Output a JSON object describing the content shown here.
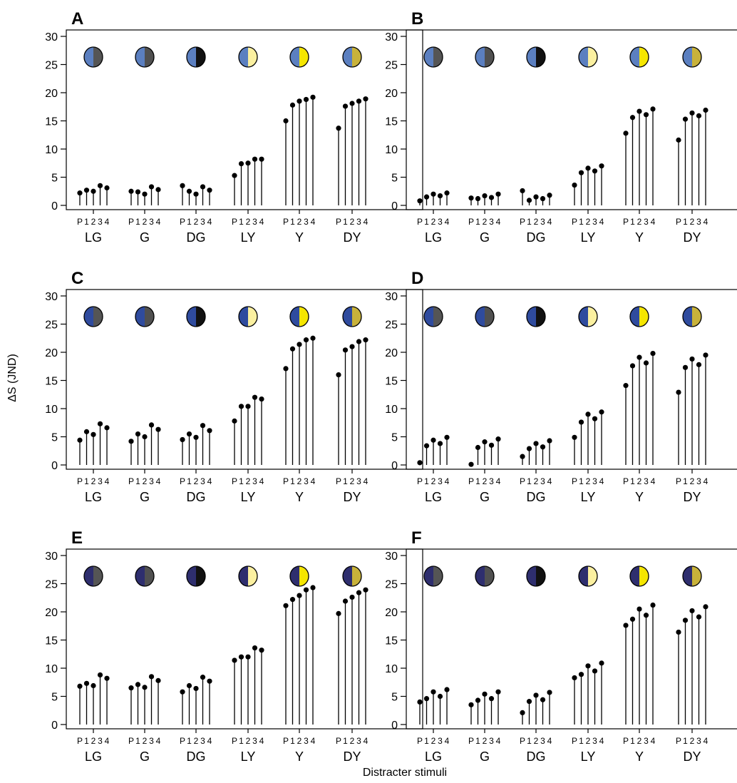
{
  "ylabel": "ΔS (JND)",
  "xlabel": "Distracter stimuli",
  "sub_labels": [
    "P",
    "1",
    "2",
    "3",
    "4"
  ],
  "colors": {
    "LG": "#555555",
    "G": "#505050",
    "DG": "#111111",
    "LY": "#fbf0a0",
    "Y": "#f5e600",
    "DY": "#c8b23a"
  },
  "chart_data": [
    {
      "panel": "A",
      "type": "lollipop",
      "ylim": [
        0,
        30
      ],
      "yticks": [
        0,
        5,
        10,
        15,
        20,
        25,
        30
      ],
      "target_color": "#5b7fc0",
      "categories": [
        "LG",
        "G",
        "DG",
        "LY",
        "Y",
        "DY"
      ],
      "values": [
        [
          2.2,
          2.7,
          2.5,
          3.5,
          3.1
        ],
        [
          2.5,
          2.4,
          2.0,
          3.3,
          2.8
        ],
        [
          3.5,
          2.5,
          2.0,
          3.3,
          2.7
        ],
        [
          5.3,
          7.4,
          7.5,
          8.2,
          8.2
        ],
        [
          15.0,
          17.8,
          18.5,
          18.8,
          19.2
        ],
        [
          13.7,
          17.6,
          18.1,
          18.5,
          18.9
        ]
      ]
    },
    {
      "panel": "B",
      "type": "lollipop",
      "ylim": [
        0,
        30
      ],
      "yticks": [
        0,
        5,
        10,
        15,
        20,
        25,
        30
      ],
      "target_color": "#5b7fc0",
      "categories": [
        "LG",
        "G",
        "DG",
        "LY",
        "Y",
        "DY"
      ],
      "values": [
        [
          0.8,
          1.5,
          2.0,
          1.7,
          2.2
        ],
        [
          1.3,
          1.2,
          1.7,
          1.4,
          2.0
        ],
        [
          2.6,
          0.9,
          1.5,
          1.2,
          1.8
        ],
        [
          3.6,
          5.8,
          6.6,
          6.1,
          7.0
        ],
        [
          12.8,
          15.6,
          16.7,
          16.1,
          17.1
        ],
        [
          11.6,
          15.3,
          16.4,
          15.9,
          16.9
        ]
      ]
    },
    {
      "panel": "C",
      "type": "lollipop",
      "ylim": [
        0,
        30
      ],
      "yticks": [
        0,
        5,
        10,
        15,
        20,
        25,
        30
      ],
      "target_color": "#2f4b9e",
      "categories": [
        "LG",
        "G",
        "DG",
        "LY",
        "Y",
        "DY"
      ],
      "values": [
        [
          4.4,
          5.9,
          5.4,
          7.3,
          6.6
        ],
        [
          4.2,
          5.5,
          5.0,
          7.1,
          6.3
        ],
        [
          4.5,
          5.5,
          4.9,
          7.0,
          6.1
        ],
        [
          7.8,
          10.4,
          10.4,
          12.0,
          11.7
        ],
        [
          17.1,
          20.6,
          21.4,
          22.2,
          22.5
        ],
        [
          16.0,
          20.4,
          21.0,
          21.9,
          22.2
        ]
      ]
    },
    {
      "panel": "D",
      "type": "lollipop",
      "ylim": [
        0,
        30
      ],
      "yticks": [
        0,
        5,
        10,
        15,
        20,
        25,
        30
      ],
      "target_color": "#2f4b9e",
      "categories": [
        "LG",
        "G",
        "DG",
        "LY",
        "Y",
        "DY"
      ],
      "values": [
        [
          0.4,
          3.4,
          4.4,
          3.8,
          4.9
        ],
        [
          0.1,
          3.1,
          4.1,
          3.5,
          4.6
        ],
        [
          1.5,
          2.9,
          3.8,
          3.2,
          4.3
        ],
        [
          4.9,
          7.6,
          9.0,
          8.2,
          9.4
        ],
        [
          14.1,
          17.6,
          19.1,
          18.1,
          19.8
        ],
        [
          12.9,
          17.3,
          18.8,
          17.8,
          19.5
        ]
      ]
    },
    {
      "panel": "E",
      "type": "lollipop",
      "ylim": [
        0,
        30
      ],
      "yticks": [
        0,
        5,
        10,
        15,
        20,
        25,
        30
      ],
      "target_color": "#2e2e6e",
      "categories": [
        "LG",
        "G",
        "DG",
        "LY",
        "Y",
        "DY"
      ],
      "values": [
        [
          6.8,
          7.3,
          6.9,
          8.8,
          8.2
        ],
        [
          6.5,
          7.1,
          6.6,
          8.5,
          7.8
        ],
        [
          5.8,
          6.9,
          6.4,
          8.4,
          7.7
        ],
        [
          11.4,
          12.0,
          12.0,
          13.6,
          13.2
        ],
        [
          21.1,
          22.2,
          22.9,
          23.9,
          24.3
        ],
        [
          19.7,
          21.9,
          22.6,
          23.4,
          23.9
        ]
      ]
    },
    {
      "panel": "F",
      "type": "lollipop",
      "ylim": [
        0,
        30
      ],
      "yticks": [
        0,
        5,
        10,
        15,
        20,
        25,
        30
      ],
      "target_color": "#2e2e6e",
      "categories": [
        "LG",
        "G",
        "DG",
        "LY",
        "Y",
        "DY"
      ],
      "values": [
        [
          4.0,
          4.6,
          5.8,
          5.0,
          6.2
        ],
        [
          3.5,
          4.3,
          5.4,
          4.6,
          5.8
        ],
        [
          2.1,
          4.1,
          5.2,
          4.4,
          5.7
        ],
        [
          8.3,
          8.9,
          10.4,
          9.5,
          10.9
        ],
        [
          17.6,
          18.7,
          20.5,
          19.4,
          21.2
        ],
        [
          16.4,
          18.5,
          20.2,
          19.1,
          20.9
        ]
      ]
    }
  ]
}
